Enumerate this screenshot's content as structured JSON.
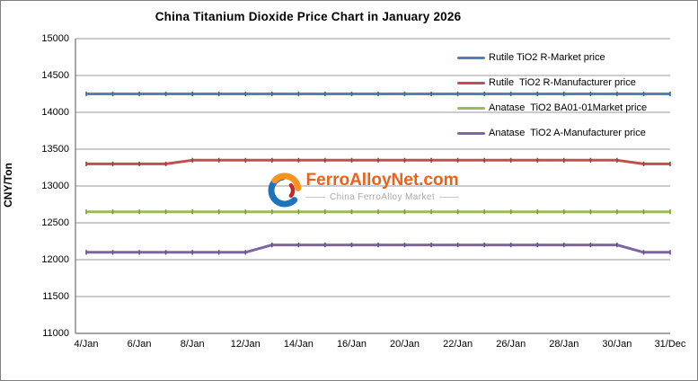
{
  "title": "China Titanium Dioxide Price Chart in January 2026",
  "watermark": {
    "brand": "FerroAlloyNet.com",
    "tagline": "China FerroAlloy Market",
    "icon": "ferroalloynet-swirl-logo",
    "brand_color": "#ec6119",
    "icon_colors": {
      "blue": "#1c75bc",
      "orange": "#f7941e",
      "red": "#c1272d"
    }
  },
  "chart_data": {
    "type": "line",
    "title": "China Titanium Dioxide Price Chart in January 2026",
    "xlabel": "",
    "ylabel": "CNY/Ton",
    "ylim": [
      11000,
      15000
    ],
    "y_tick_step": 500,
    "y_ticks": [
      "15000",
      "14500",
      "14000",
      "13500",
      "13000",
      "12500",
      "12000",
      "11500",
      "11000"
    ],
    "grid": "horizontal",
    "legend_position": "top-right-inside",
    "categories": [
      "4/Jan",
      "",
      "6/Jan",
      "",
      "8/Jan",
      "",
      "12/Jan",
      "",
      "14/Jan",
      "",
      "16/Jan",
      "",
      "20/Jan",
      "",
      "22/Jan",
      "",
      "26/Jan",
      "",
      "28/Jan",
      "",
      "30/Jan",
      "",
      "31/Dec"
    ],
    "series": [
      {
        "name": "Rutile TiO2 R-Market price",
        "color": "#4F81BD",
        "values": [
          14250,
          14250,
          14250,
          14250,
          14250,
          14250,
          14250,
          14250,
          14250,
          14250,
          14250,
          14250,
          14250,
          14250,
          14250,
          14250,
          14250,
          14250,
          14250,
          14250,
          14250,
          14250,
          14250
        ]
      },
      {
        "name": "Rutile  TiO2 R-Manufacturer price",
        "color": "#C0504D",
        "values": [
          13300,
          13300,
          13300,
          13300,
          13350,
          13350,
          13350,
          13350,
          13350,
          13350,
          13350,
          13350,
          13350,
          13350,
          13350,
          13350,
          13350,
          13350,
          13350,
          13350,
          13350,
          13300,
          13300
        ]
      },
      {
        "name": "Anatase  TiO2 BA01-01Market price",
        "color": "#9BBB59",
        "values": [
          12650,
          12650,
          12650,
          12650,
          12650,
          12650,
          12650,
          12650,
          12650,
          12650,
          12650,
          12650,
          12650,
          12650,
          12650,
          12650,
          12650,
          12650,
          12650,
          12650,
          12650,
          12650,
          12650
        ]
      },
      {
        "name": "Anatase  TiO2 A-Manufacturer price",
        "color": "#8064A2",
        "values": [
          12100,
          12100,
          12100,
          12100,
          12100,
          12100,
          12100,
          12200,
          12200,
          12200,
          12200,
          12200,
          12200,
          12200,
          12200,
          12200,
          12200,
          12200,
          12200,
          12200,
          12200,
          12100,
          12100
        ]
      }
    ]
  }
}
